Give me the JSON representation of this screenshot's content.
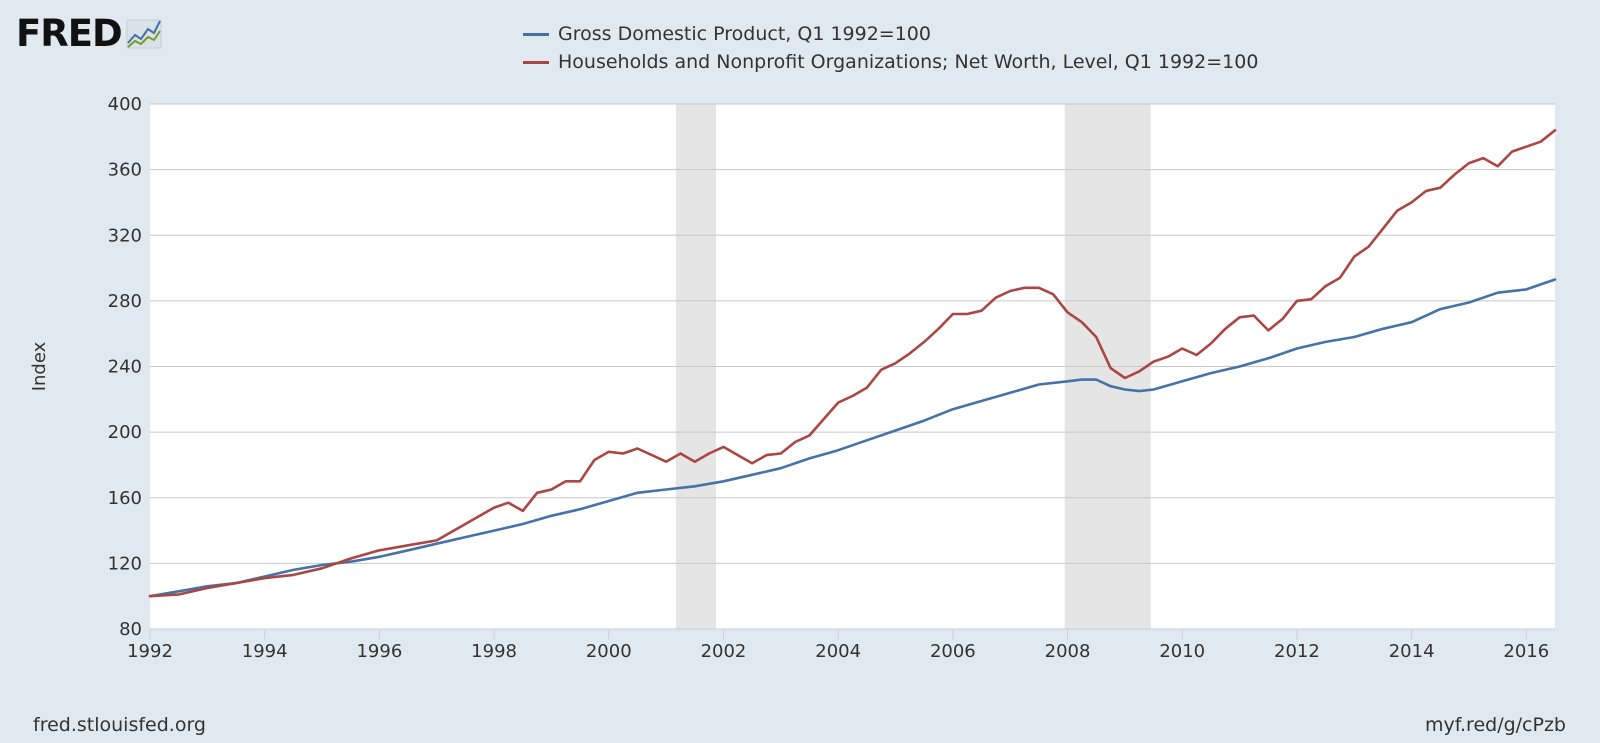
{
  "logo": {
    "text": "FRED"
  },
  "footer": {
    "source": "fred.stlouisfed.org",
    "short_url": "myf.red/g/cPzb"
  },
  "chart_data": {
    "type": "line",
    "title": "",
    "xlabel": "",
    "ylabel": "Index",
    "xlim": [
      1992.0,
      2016.5
    ],
    "ylim": [
      80,
      400
    ],
    "yticks": [
      80,
      120,
      160,
      200,
      240,
      280,
      320,
      360,
      400
    ],
    "xticks": [
      1992,
      1994,
      1996,
      1998,
      2000,
      2002,
      2004,
      2006,
      2008,
      2010,
      2012,
      2014,
      2016
    ],
    "grid": true,
    "legend_position": "top-center",
    "recessions": [
      [
        2001.17,
        2001.87
      ],
      [
        2007.95,
        2009.45
      ]
    ],
    "series": [
      {
        "name": "Gross Domestic Product, Q1 1992=100",
        "color": "#4572a7",
        "x": [
          1992.0,
          1992.5,
          1993.0,
          1993.5,
          1994.0,
          1994.5,
          1995.0,
          1995.5,
          1996.0,
          1996.5,
          1997.0,
          1997.5,
          1998.0,
          1998.5,
          1999.0,
          1999.5,
          2000.0,
          2000.5,
          2001.0,
          2001.5,
          2002.0,
          2002.5,
          2003.0,
          2003.5,
          2004.0,
          2004.5,
          2005.0,
          2005.5,
          2006.0,
          2006.5,
          2007.0,
          2007.5,
          2008.0,
          2008.25,
          2008.5,
          2008.75,
          2009.0,
          2009.25,
          2009.5,
          2010.0,
          2010.5,
          2011.0,
          2011.5,
          2012.0,
          2012.5,
          2013.0,
          2013.5,
          2014.0,
          2014.5,
          2015.0,
          2015.5,
          2016.0,
          2016.5
        ],
        "values": [
          100,
          103,
          106,
          108,
          112,
          116,
          119,
          121,
          124,
          128,
          132,
          136,
          140,
          144,
          149,
          153,
          158,
          163,
          165,
          167,
          170,
          174,
          178,
          184,
          189,
          195,
          201,
          207,
          214,
          219,
          224,
          229,
          231,
          232,
          232,
          228,
          226,
          225,
          226,
          231,
          236,
          240,
          245,
          251,
          255,
          258,
          263,
          267,
          275,
          279,
          285,
          287,
          293
        ]
      },
      {
        "name": "Households and Nonprofit Organizations; Net Worth, Level, Q1 1992=100",
        "color": "#aa4643",
        "x": [
          1992.0,
          1992.5,
          1993.0,
          1993.5,
          1994.0,
          1994.5,
          1995.0,
          1995.5,
          1996.0,
          1996.5,
          1997.0,
          1997.5,
          1998.0,
          1998.25,
          1998.5,
          1998.75,
          1999.0,
          1999.25,
          1999.5,
          1999.75,
          2000.0,
          2000.25,
          2000.5,
          2000.75,
          2001.0,
          2001.25,
          2001.5,
          2001.75,
          2002.0,
          2002.25,
          2002.5,
          2002.75,
          2003.0,
          2003.25,
          2003.5,
          2003.75,
          2004.0,
          2004.25,
          2004.5,
          2004.75,
          2005.0,
          2005.25,
          2005.5,
          2005.75,
          2006.0,
          2006.25,
          2006.5,
          2006.75,
          2007.0,
          2007.25,
          2007.5,
          2007.75,
          2008.0,
          2008.25,
          2008.5,
          2008.75,
          2009.0,
          2009.25,
          2009.5,
          2009.75,
          2010.0,
          2010.25,
          2010.5,
          2010.75,
          2011.0,
          2011.25,
          2011.5,
          2011.75,
          2012.0,
          2012.25,
          2012.5,
          2012.75,
          2013.0,
          2013.25,
          2013.5,
          2013.75,
          2014.0,
          2014.25,
          2014.5,
          2014.75,
          2015.0,
          2015.25,
          2015.5,
          2015.75,
          2016.0,
          2016.25,
          2016.5
        ],
        "values": [
          100,
          101,
          105,
          108,
          111,
          113,
          117,
          123,
          128,
          131,
          134,
          144,
          154,
          157,
          152,
          163,
          165,
          170,
          170,
          183,
          188,
          187,
          190,
          186,
          182,
          187,
          182,
          187,
          191,
          186,
          181,
          186,
          187,
          194,
          198,
          208,
          218,
          222,
          227,
          238,
          242,
          248,
          255,
          263,
          272,
          272,
          274,
          282,
          286,
          288,
          288,
          284,
          273,
          267,
          258,
          239,
          233,
          237,
          243,
          246,
          251,
          247,
          254,
          263,
          270,
          271,
          262,
          269,
          280,
          281,
          289,
          294,
          307,
          313,
          324,
          335,
          340,
          347,
          349,
          357,
          364,
          367,
          362,
          371,
          374,
          377,
          384
        ]
      }
    ]
  }
}
